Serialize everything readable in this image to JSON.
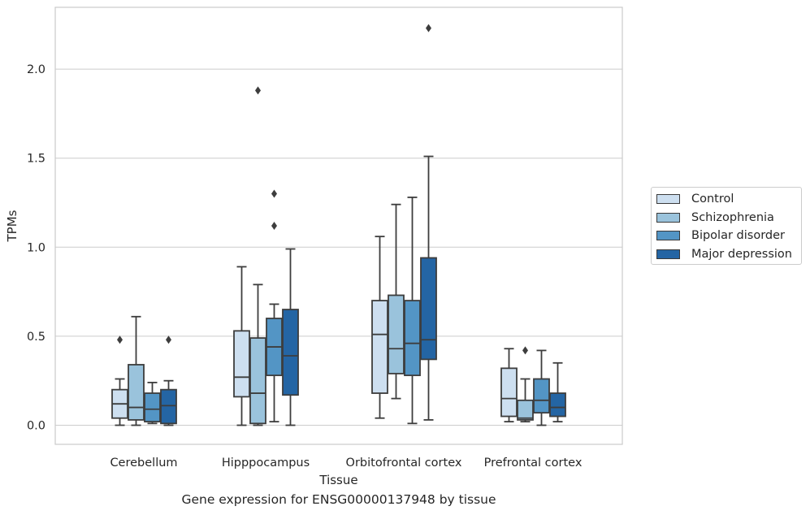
{
  "chart_data": {
    "type": "boxplot",
    "title": "",
    "xlabel": "Tissue",
    "ylabel": "TPMs",
    "ylim": [
      -0.11,
      2.35
    ],
    "yticks": [
      0.0,
      0.5,
      1.0,
      1.5,
      2.0
    ],
    "ytick_labels": [
      "0.0",
      "0.5",
      "1.0",
      "1.5",
      "2.0"
    ],
    "grid": "horizontal",
    "legend_position": "right",
    "categories": [
      "Cerebellum",
      "Hipppocampus",
      "Orbitofrontal cortex",
      "Prefrontal cortex"
    ],
    "series": [
      {
        "name": "Control",
        "color": "#cddff0",
        "boxes": [
          {
            "whislo": 0.0,
            "q1": 0.04,
            "med": 0.12,
            "q3": 0.2,
            "whishi": 0.26,
            "fliers": [
              0.48
            ]
          },
          {
            "whislo": 0.0,
            "q1": 0.16,
            "med": 0.27,
            "q3": 0.53,
            "whishi": 0.89,
            "fliers": []
          },
          {
            "whislo": 0.04,
            "q1": 0.18,
            "med": 0.51,
            "q3": 0.7,
            "whishi": 1.06,
            "fliers": []
          },
          {
            "whislo": 0.02,
            "q1": 0.05,
            "med": 0.15,
            "q3": 0.32,
            "whishi": 0.43,
            "fliers": []
          }
        ]
      },
      {
        "name": "Schizophrenia",
        "color": "#9ac3dc",
        "boxes": [
          {
            "whislo": 0.0,
            "q1": 0.03,
            "med": 0.1,
            "q3": 0.34,
            "whishi": 0.61,
            "fliers": []
          },
          {
            "whislo": 0.0,
            "q1": 0.01,
            "med": 0.18,
            "q3": 0.49,
            "whishi": 0.79,
            "fliers": [
              1.88
            ]
          },
          {
            "whislo": 0.15,
            "q1": 0.29,
            "med": 0.43,
            "q3": 0.73,
            "whishi": 1.24,
            "fliers": []
          },
          {
            "whislo": 0.02,
            "q1": 0.03,
            "med": 0.04,
            "q3": 0.14,
            "whishi": 0.26,
            "fliers": [
              0.42
            ]
          }
        ]
      },
      {
        "name": "Bipolar disorder",
        "color": "#5395c5",
        "boxes": [
          {
            "whislo": 0.01,
            "q1": 0.02,
            "med": 0.09,
            "q3": 0.18,
            "whishi": 0.24,
            "fliers": []
          },
          {
            "whislo": 0.02,
            "q1": 0.28,
            "med": 0.44,
            "q3": 0.6,
            "whishi": 0.68,
            "fliers": [
              1.12,
              1.3
            ]
          },
          {
            "whislo": 0.01,
            "q1": 0.28,
            "med": 0.46,
            "q3": 0.7,
            "whishi": 1.28,
            "fliers": []
          },
          {
            "whislo": 0.0,
            "q1": 0.07,
            "med": 0.14,
            "q3": 0.26,
            "whishi": 0.42,
            "fliers": []
          }
        ]
      },
      {
        "name": "Major depression",
        "color": "#2465a4",
        "boxes": [
          {
            "whislo": 0.0,
            "q1": 0.01,
            "med": 0.11,
            "q3": 0.2,
            "whishi": 0.25,
            "fliers": [
              0.48
            ]
          },
          {
            "whislo": 0.0,
            "q1": 0.17,
            "med": 0.39,
            "q3": 0.65,
            "whishi": 0.99,
            "fliers": []
          },
          {
            "whislo": 0.03,
            "q1": 0.37,
            "med": 0.48,
            "q3": 0.94,
            "whishi": 1.51,
            "fliers": [
              2.23
            ]
          },
          {
            "whislo": 0.02,
            "q1": 0.05,
            "med": 0.1,
            "q3": 0.18,
            "whishi": 0.35,
            "fliers": []
          }
        ]
      }
    ]
  },
  "figure": {
    "caption": "Gene expression for ENSG00000137948 by tissue"
  }
}
